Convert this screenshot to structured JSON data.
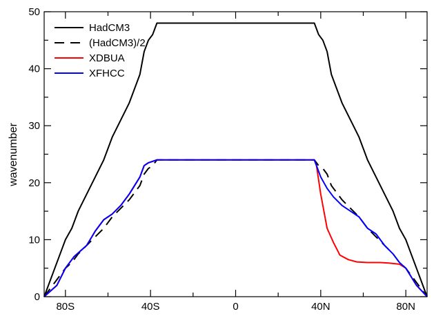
{
  "chart_data": {
    "type": "line",
    "title": "",
    "xlabel": "",
    "ylabel": "wavenumber",
    "xlim": [
      -90,
      90
    ],
    "ylim": [
      0,
      50
    ],
    "x_ticks": [
      {
        "value": -80,
        "label": "80S"
      },
      {
        "value": -40,
        "label": "40S"
      },
      {
        "value": 0,
        "label": "0"
      },
      {
        "value": 40,
        "label": "40N"
      },
      {
        "value": 80,
        "label": "80N"
      }
    ],
    "x_minor_ticks": [
      -60,
      -20,
      20,
      60
    ],
    "y_ticks": [
      0,
      10,
      20,
      30,
      40,
      50
    ],
    "y_minor_ticks": [
      5,
      15,
      25,
      35,
      45
    ],
    "grid": false,
    "legend_position": "top-left",
    "series": [
      {
        "name": "HadCM3",
        "color": "#000000",
        "dash": "solid",
        "x": [
          -90,
          -88,
          -85,
          -82,
          -80,
          -77,
          -74,
          -70,
          -66,
          -62,
          -58,
          -54,
          -50,
          -45,
          -43,
          -41,
          -39,
          -38,
          -37,
          -33,
          -30,
          0,
          30,
          33,
          37,
          38,
          39,
          41,
          43,
          45,
          50,
          54,
          58,
          62,
          66,
          70,
          74,
          77,
          80,
          82,
          85,
          88,
          90
        ],
        "y": [
          0,
          2,
          5,
          8,
          10,
          12,
          15,
          18,
          21,
          24,
          28,
          31,
          34,
          39,
          43,
          45,
          46,
          47,
          48,
          48,
          48,
          48,
          48,
          48,
          48,
          47,
          46,
          45,
          43,
          39,
          34,
          31,
          28,
          24,
          21,
          18,
          15,
          12,
          10,
          8,
          5,
          2,
          0
        ]
      },
      {
        "name": "(HadCM3)/2",
        "color": "#000000",
        "dash": "dashed",
        "x": [
          -90,
          -88,
          -85,
          -82,
          -80,
          -77,
          -74,
          -70,
          -66,
          -62,
          -58,
          -54,
          -50,
          -45,
          -43,
          -41,
          -39,
          -38,
          -37,
          -33,
          -30,
          0,
          30,
          33,
          37,
          38,
          39,
          41,
          43,
          45,
          50,
          54,
          58,
          62,
          66,
          70,
          74,
          77,
          80,
          82,
          85,
          88,
          90
        ],
        "y": [
          0,
          1,
          2.5,
          4,
          5,
          6,
          7.5,
          9,
          10.5,
          12,
          14,
          15.5,
          17,
          19.5,
          21.5,
          22.5,
          23,
          23.5,
          24,
          24,
          24,
          24,
          24,
          24,
          24,
          23.5,
          23,
          22.5,
          21.5,
          19.5,
          17,
          15.5,
          14,
          12,
          10.5,
          9,
          7.5,
          6,
          5,
          4,
          2.5,
          1,
          0
        ]
      },
      {
        "name": "XDBUA",
        "color": "#ff0000",
        "dash": "solid",
        "x": [
          -90,
          -87,
          -84,
          -80,
          -76,
          -70,
          -66,
          -62,
          -58,
          -54,
          -50,
          -45,
          -43,
          -41,
          -37,
          -33,
          0,
          33,
          37,
          38,
          40,
          43,
          46,
          49,
          53,
          57,
          62,
          68,
          72,
          77,
          80,
          85,
          90
        ],
        "y": [
          0,
          1,
          2,
          5,
          7,
          9,
          11.5,
          13.5,
          14.5,
          16,
          18,
          21,
          23,
          23.5,
          24,
          24,
          24,
          24,
          24,
          23,
          18,
          12,
          9.5,
          7.3,
          6.5,
          6.1,
          6.0,
          6.0,
          5.9,
          5.7,
          5.0,
          2,
          0
        ]
      },
      {
        "name": "XFHCC",
        "color": "#0000ff",
        "dash": "solid",
        "x": [
          -90,
          -87,
          -84,
          -80,
          -76,
          -70,
          -66,
          -62,
          -58,
          -54,
          -50,
          -45,
          -43,
          -41,
          -37,
          -33,
          0,
          33,
          37,
          38,
          40,
          43,
          46,
          50,
          54,
          58,
          62,
          66,
          70,
          74,
          77,
          80,
          85,
          90
        ],
        "y": [
          0,
          1,
          2,
          5,
          7,
          9,
          11.5,
          13.5,
          14.5,
          16,
          18,
          21,
          23,
          23.5,
          24,
          24,
          24,
          24,
          24,
          23,
          21,
          19,
          17.5,
          16,
          15,
          14,
          12,
          11,
          9,
          7.5,
          6,
          5,
          2,
          0
        ]
      }
    ]
  }
}
